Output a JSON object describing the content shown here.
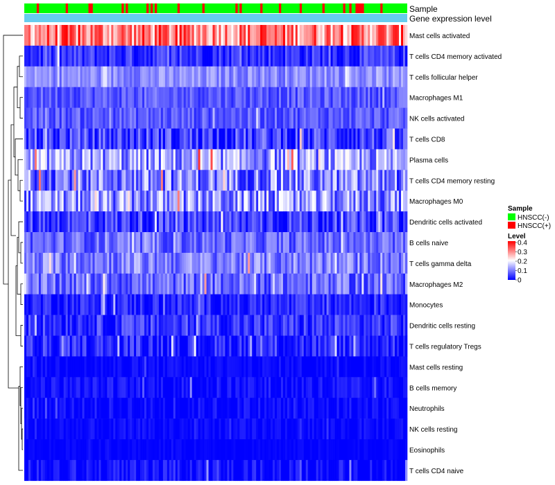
{
  "chart_data": {
    "type": "heatmap",
    "title": "",
    "annotation_tracks": [
      {
        "name": "Sample",
        "kind": "categorical"
      },
      {
        "name": "Gene expression level",
        "kind": "constant",
        "color": "#66ccee"
      }
    ],
    "rows": [
      {
        "name": "Mast cells activated",
        "mean": 0.3,
        "spread": 0.1
      },
      {
        "name": "T cells CD4 memory activated",
        "mean": 0.04,
        "spread": 0.05
      },
      {
        "name": "T cells follicular helper",
        "mean": 0.11,
        "spread": 0.04
      },
      {
        "name": "Macrophages M1",
        "mean": 0.07,
        "spread": 0.04
      },
      {
        "name": "NK cells activated",
        "mean": 0.07,
        "spread": 0.04
      },
      {
        "name": "T cells CD8",
        "mean": 0.05,
        "spread": 0.07
      },
      {
        "name": "Plasma cells",
        "mean": 0.12,
        "spread": 0.09
      },
      {
        "name": "T cells CD4 memory resting",
        "mean": 0.1,
        "spread": 0.09
      },
      {
        "name": "Macrophages M0",
        "mean": 0.11,
        "spread": 0.09
      },
      {
        "name": "Dendritic cells activated",
        "mean": 0.05,
        "spread": 0.06
      },
      {
        "name": "B cells naive",
        "mean": 0.08,
        "spread": 0.05
      },
      {
        "name": "T cells gamma delta",
        "mean": 0.1,
        "spread": 0.06
      },
      {
        "name": "Macrophages M2",
        "mean": 0.08,
        "spread": 0.06
      },
      {
        "name": "Monocytes",
        "mean": 0.03,
        "spread": 0.04
      },
      {
        "name": "Dendritic cells resting",
        "mean": 0.04,
        "spread": 0.05
      },
      {
        "name": "T cells regulatory  Tregs",
        "mean": 0.03,
        "spread": 0.05
      },
      {
        "name": "Mast cells resting",
        "mean": 0.005,
        "spread": 0.02
      },
      {
        "name": "B cells memory",
        "mean": 0.01,
        "spread": 0.03
      },
      {
        "name": "Neutrophils",
        "mean": 0.005,
        "spread": 0.03
      },
      {
        "name": "NK cells resting",
        "mean": 0.005,
        "spread": 0.02
      },
      {
        "name": "Eosinophils",
        "mean": 0.002,
        "spread": 0.01
      },
      {
        "name": "T cells CD4 naive",
        "mean": 0.005,
        "spread": 0.04
      }
    ],
    "n_samples": 185,
    "legend": {
      "sample": {
        "title": "Sample",
        "entries": [
          {
            "label": "HNSCC(-)",
            "color": "#00ff00"
          },
          {
            "label": "HNSCC(+)",
            "color": "#ff0000"
          }
        ]
      },
      "level": {
        "title": "Level",
        "min": 0,
        "max": 0.4,
        "ticks": [
          "0.4",
          "0.3",
          "0.2",
          "0.1",
          "0"
        ],
        "colors": [
          "#0000ff",
          "#ffffff",
          "#ff0000"
        ]
      }
    },
    "dendrogram": "left",
    "legend_position": "right"
  }
}
